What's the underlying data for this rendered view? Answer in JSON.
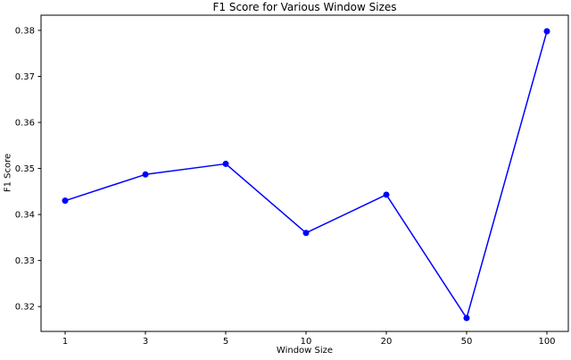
{
  "chart_data": {
    "type": "line",
    "title": "F1 Score for Various Window Sizes",
    "xlabel": "Window Size",
    "ylabel": "F1 Score",
    "categories": [
      "1",
      "3",
      "5",
      "10",
      "20",
      "50",
      "100"
    ],
    "series": [
      {
        "name": "F1 Score",
        "values": [
          0.343,
          0.3487,
          0.351,
          0.336,
          0.3443,
          0.3175,
          0.3798
        ]
      }
    ],
    "ytick_labels": [
      "0.32",
      "0.33",
      "0.34",
      "0.35",
      "0.36",
      "0.37",
      "0.38"
    ],
    "yticks": [
      0.32,
      0.33,
      0.34,
      0.35,
      0.36,
      0.37,
      0.38
    ],
    "ylim": [
      0.3146,
      0.3833
    ],
    "grid": false,
    "legend_position": "none",
    "line_color": "#0000ff",
    "marker": "circle",
    "axis_color": "#000000",
    "background_color": "#ffffff"
  }
}
